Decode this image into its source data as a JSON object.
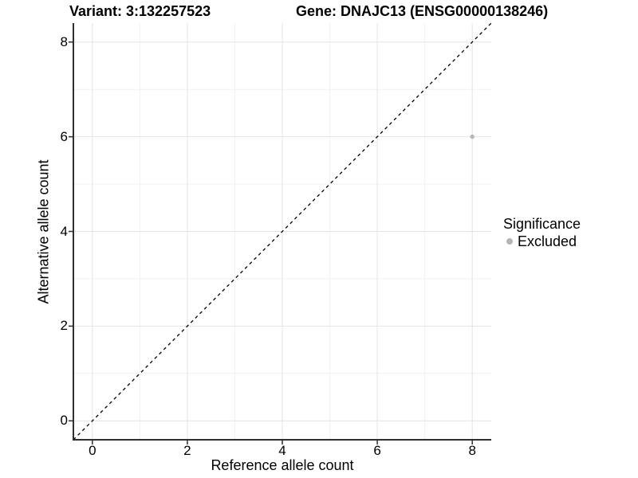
{
  "chart_data": {
    "type": "scatter",
    "title_left": "Variant: 3:132257523",
    "title_right": "Gene: DNAJC13 (ENSG00000138246)",
    "xlabel": "Reference allele count",
    "ylabel": "Alternative allele count",
    "xlim": [
      -0.4,
      8.4
    ],
    "ylim": [
      -0.4,
      8.4
    ],
    "x_ticks": [
      0,
      2,
      4,
      6,
      8
    ],
    "y_ticks": [
      0,
      2,
      4,
      6,
      8
    ],
    "x_minor_ticks": [
      1,
      3,
      5,
      7
    ],
    "y_minor_ticks": [
      1,
      3,
      5,
      7
    ],
    "grid": true,
    "series": [
      {
        "name": "Excluded",
        "color": "#b5b5b5",
        "points": [
          {
            "x": 8,
            "y": 6
          }
        ]
      }
    ],
    "reference_line": {
      "type": "identity",
      "slope": 1,
      "intercept": 0,
      "style": "dashed",
      "color": "#000000"
    },
    "legend": {
      "title": "Significance",
      "position": "right",
      "items": [
        {
          "label": "Excluded",
          "color": "#b5b5b5"
        }
      ]
    }
  },
  "colors": {
    "background": "#ffffff",
    "grid_major": "#e4e4e4",
    "grid_minor": "#f1f1f1",
    "axis_line": "#2f2f2f",
    "tick_mark": "#2f2f2f",
    "text": "#000000",
    "point": "#b5b5b5"
  }
}
